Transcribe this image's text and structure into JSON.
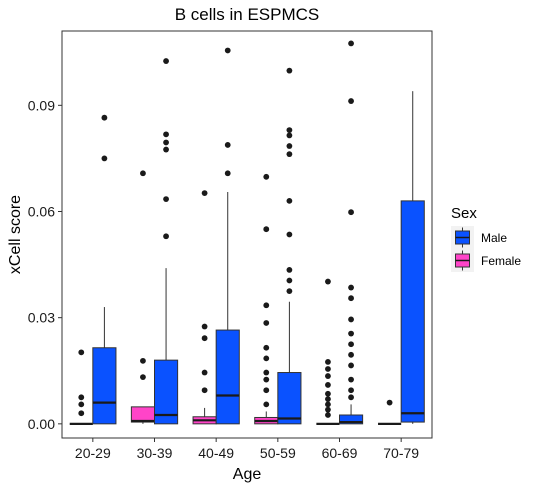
{
  "chart_data": {
    "type": "boxplot",
    "title": "B cells in ESPMCS",
    "xlabel": "Age",
    "ylabel": "xCell score",
    "ylim": [
      -0.004,
      0.111
    ],
    "yticks": [
      0.0,
      0.03,
      0.06,
      0.09
    ],
    "ytick_labels": [
      "0.00",
      "0.03",
      "0.06",
      "0.09"
    ],
    "categories": [
      "20-29",
      "30-39",
      "40-49",
      "50-59",
      "60-69",
      "70-79"
    ],
    "legend": {
      "title": "Sex",
      "position": "right"
    },
    "grid": false,
    "series": [
      {
        "name": "Male",
        "color": "#0A52FF",
        "boxes": [
          {
            "category": "20-29",
            "min": 0.0,
            "q1": 0.0,
            "median": 0.006,
            "q3": 0.0215,
            "max": 0.033,
            "outliers": [
              0.075,
              0.0865
            ]
          },
          {
            "category": "30-39",
            "min": 0.0,
            "q1": 0.0,
            "median": 0.0025,
            "q3": 0.018,
            "max": 0.044,
            "outliers": [
              0.053,
              0.0635,
              0.0775,
              0.0795,
              0.0818,
              0.1025
            ]
          },
          {
            "category": "40-49",
            "min": 0.0,
            "q1": 0.0,
            "median": 0.008,
            "q3": 0.0265,
            "max": 0.0655,
            "outliers": [
              0.0708,
              0.0788,
              0.1055
            ]
          },
          {
            "category": "50-59",
            "min": 0.0,
            "q1": 0.0,
            "median": 0.0015,
            "q3": 0.0145,
            "max": 0.0345,
            "outliers": [
              0.0375,
              0.0405,
              0.0435,
              0.0535,
              0.063,
              0.0762,
              0.0785,
              0.0815,
              0.083,
              0.0998
            ]
          },
          {
            "category": "60-69",
            "min": 0.0,
            "q1": 0.0,
            "median": 0.0005,
            "q3": 0.0025,
            "max": 0.0055,
            "outliers": [
              0.0075,
              0.0095,
              0.0125,
              0.0165,
              0.0195,
              0.0225,
              0.0255,
              0.0295,
              0.0355,
              0.0385,
              0.0598,
              0.0912,
              0.1075
            ]
          },
          {
            "category": "70-79",
            "min": 0.0,
            "q1": 0.0005,
            "median": 0.003,
            "q3": 0.063,
            "max": 0.094,
            "outliers": []
          }
        ]
      },
      {
        "name": "Female",
        "color": "#FF44C8",
        "boxes": [
          {
            "category": "20-29",
            "min": 0.0,
            "q1": 0.0,
            "median": 0.0,
            "q3": 0.0,
            "max": 0.0,
            "outliers": [
              0.003,
              0.0055,
              0.0075,
              0.0202
            ]
          },
          {
            "category": "30-39",
            "min": 0.0,
            "q1": 0.0005,
            "median": 0.0008,
            "q3": 0.0048,
            "max": 0.0048,
            "outliers": [
              0.0132,
              0.0178,
              0.0708
            ]
          },
          {
            "category": "40-49",
            "min": 0.0,
            "q1": 0.0,
            "median": 0.001,
            "q3": 0.002,
            "max": 0.0045,
            "outliers": [
              0.0095,
              0.0145,
              0.0242,
              0.0275,
              0.0652
            ]
          },
          {
            "category": "50-59",
            "min": 0.0,
            "q1": 0.0,
            "median": 0.0008,
            "q3": 0.0018,
            "max": 0.0035,
            "outliers": [
              0.0055,
              0.0095,
              0.0125,
              0.0145,
              0.0185,
              0.0215,
              0.0285,
              0.0335,
              0.055,
              0.0698
            ]
          },
          {
            "category": "60-69",
            "min": 0.0,
            "q1": 0.0,
            "median": 0.0,
            "q3": 0.0,
            "max": 0.0,
            "outliers": [
              0.0025,
              0.004,
              0.0055,
              0.007,
              0.0085,
              0.011,
              0.0135,
              0.0155,
              0.0175,
              0.0402
            ]
          },
          {
            "category": "70-79",
            "min": 0.0,
            "q1": 0.0,
            "median": 0.0,
            "q3": 0.0,
            "max": 0.0,
            "outliers": [
              0.006
            ]
          }
        ]
      }
    ]
  }
}
